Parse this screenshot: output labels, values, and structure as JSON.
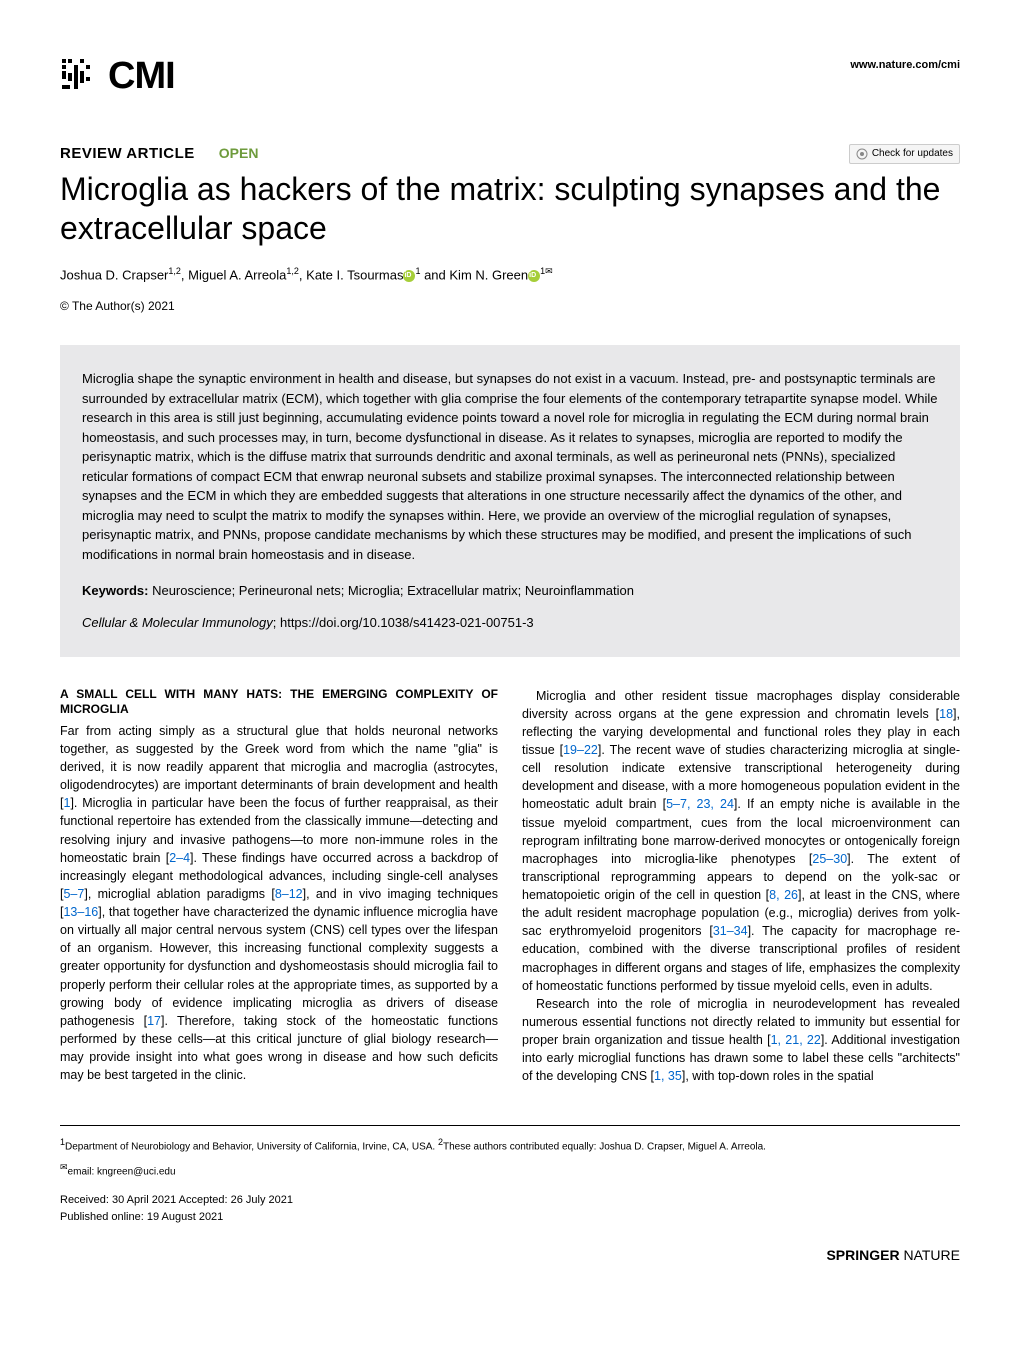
{
  "header": {
    "logo_text": "CMI",
    "site_url": "www.nature.com/cmi"
  },
  "article": {
    "type": "REVIEW ARTICLE",
    "open_label": "OPEN",
    "check_updates": "Check for updates",
    "title": "Microglia as hackers of the matrix: sculpting synapses and the extracellular space",
    "authors_html": "Joshua D. Crapser",
    "author1_sup": "1,2",
    "author2": ", Miguel A. Arreola",
    "author2_sup": "1,2",
    "author3": ", Kate I. Tsourmas",
    "author3_sup": "1",
    "author_and": " and Kim N. Green",
    "author4_sup": "1",
    "copyright": "© The Author(s) 2021"
  },
  "abstract": {
    "text": "Microglia shape the synaptic environment in health and disease, but synapses do not exist in a vacuum. Instead, pre- and postsynaptic terminals are surrounded by extracellular matrix (ECM), which together with glia comprise the four elements of the contemporary tetrapartite synapse model. While research in this area is still just beginning, accumulating evidence points toward a novel role for microglia in regulating the ECM during normal brain homeostasis, and such processes may, in turn, become dysfunctional in disease. As it relates to synapses, microglia are reported to modify the perisynaptic matrix, which is the diffuse matrix that surrounds dendritic and axonal terminals, as well as perineuronal nets (PNNs), specialized reticular formations of compact ECM that enwrap neuronal subsets and stabilize proximal synapses. The interconnected relationship between synapses and the ECM in which they are embedded suggests that alterations in one structure necessarily affect the dynamics of the other, and microglia may need to sculpt the matrix to modify the synapses within. Here, we provide an overview of the microglial regulation of synapses, perisynaptic matrix, and PNNs, propose candidate mechanisms by which these structures may be modified, and present the implications of such modifications in normal brain homeostasis and in disease.",
    "keywords_label": "Keywords:",
    "keywords": " Neuroscience; Perineuronal nets; Microglia; Extracellular matrix; Neuroinflammation",
    "citation_journal": "Cellular & Molecular Immunology",
    "citation_doi": "; https://doi.org/10.1038/s41423-021-00751-3"
  },
  "body": {
    "section_heading": "A SMALL CELL WITH MANY HATS: THE EMERGING COMPLEXITY OF MICROGLIA",
    "col1_p1": "Far from acting simply as a structural glue that holds neuronal networks together, as suggested by the Greek word from which the name \"glia\" is derived, it is now readily apparent that microglia and macroglia (astrocytes, oligodendrocytes) are important determinants of brain development and health [1]. Microglia in particular have been the focus of further reappraisal, as their functional repertoire has extended from the classically immune—detecting and resolving injury and invasive pathogens—to more non-immune roles in the homeostatic brain [2–4]. These findings have occurred across a backdrop of increasingly elegant methodological advances, including single-cell analyses [5–7], microglial ablation paradigms [8–12], and in vivo imaging techniques [13–16], that together have characterized the dynamic influence microglia have on virtually all major central nervous system (CNS) cell types over the lifespan of an organism. However, this increasing functional complexity suggests a greater opportunity for dysfunction and dyshomeostasis should microglia fail to properly perform their cellular roles at the appropriate times, as supported by a growing body of evidence implicating microglia as drivers of disease pathogenesis [17]. Therefore, taking stock of the homeostatic functions performed by these cells—at this critical juncture of glial biology research—may provide insight into what goes wrong in disease and how such deficits may be best targeted in the clinic.",
    "col2_p1": "Microglia and other resident tissue macrophages display considerable diversity across organs at the gene expression and chromatin levels [18], reflecting the varying developmental and functional roles they play in each tissue [19–22]. The recent wave of studies characterizing microglia at single-cell resolution indicate extensive transcriptional heterogeneity during development and disease, with a more homogeneous population evident in the homeostatic adult brain [5–7, 23, 24]. If an empty niche is available in the tissue myeloid compartment, cues from the local microenvironment can reprogram infiltrating bone marrow-derived monocytes or ontogenically foreign macrophages into microglia-like phenotypes [25–30]. The extent of transcriptional reprogramming appears to depend on the yolk-sac or hematopoietic origin of the cell in question [8, 26], at least in the CNS, where the adult resident macrophage population (e.g., microglia) derives from yolk-sac erythromyeloid progenitors [31–34]. The capacity for macrophage re-education, combined with the diverse transcriptional profiles of resident macrophages in different organs and stages of life, emphasizes the complexity of homeostatic functions performed by tissue myeloid cells, even in adults.",
    "col2_p2": "Research into the role of microglia in neurodevelopment has revealed numerous essential functions not directly related to immunity but essential for proper brain organization and tissue health [1, 21, 22]. Additional investigation into early microglial functions has drawn some to label these cells \"architects\" of the developing CNS [1, 35], with top-down roles in the spatial"
  },
  "footer": {
    "affiliations": "Department of Neurobiology and Behavior, University of California, Irvine, CA, USA. ",
    "aff2": "These authors contributed equally: Joshua D. Crapser, Miguel A. Arreola.",
    "email_label": "email: ",
    "email": "kngreen@uci.edu",
    "received": "Received: 30 April 2021 Accepted: 26 July 2021",
    "published": "Published online: 19 August 2021",
    "publisher": "SPRINGER",
    "publisher2": " NATURE"
  }
}
